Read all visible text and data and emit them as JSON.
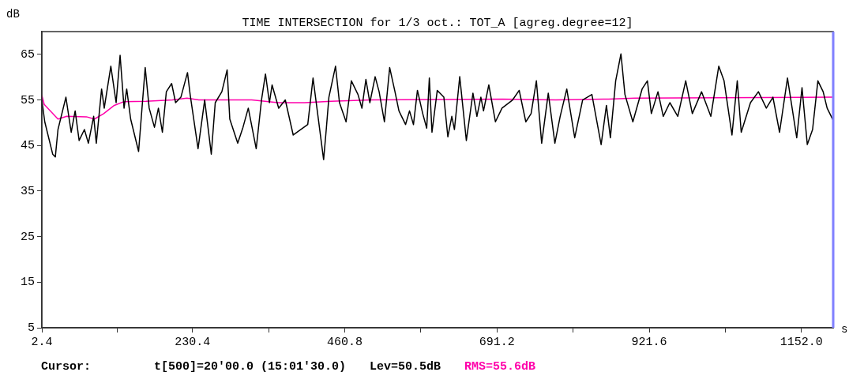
{
  "chart_data": {
    "type": "line",
    "title": "TIME INTERSECTION for 1/3 oct.: TOT_A [agreg.degree=12]",
    "ylabel": "dB",
    "xlabel": "s",
    "xlim": [
      2.4,
      1200
    ],
    "ylim": [
      5,
      70
    ],
    "xticks": [
      2.4,
      {
        "value": 116.4,
        "label": null
      },
      230.4,
      {
        "value": 345.6,
        "label": null
      },
      460.8,
      {
        "value": 576,
        "label": null
      },
      691.2,
      {
        "value": 806.4,
        "label": null
      },
      921.6,
      {
        "value": 1036.8,
        "label": null
      },
      {
        "value": 1152,
        "label": "1152.0"
      }
    ],
    "yticks": [
      5,
      15,
      25,
      35,
      45,
      55,
      65
    ],
    "grid": false,
    "marker": "none",
    "ref_lines": [
      {
        "axis": "x",
        "value": 1200,
        "color": "#8080ff"
      }
    ],
    "annotations": [
      "Cursor:",
      "t[500]=20'00.0 (15:01'30.0)",
      "Lev=50.5dB",
      "RMS=55.6dB"
    ],
    "series": [
      {
        "color": "#000000",
        "x": [
          2.4,
          6.8,
          18.8,
          22.8,
          26.8,
          38.8,
          46.8,
          52.8,
          58.8,
          66.8,
          72.8,
          80.8,
          84.8,
          92.8,
          96.8,
          106.8,
          114.8,
          120.8,
          126.8,
          130.8,
          136.8,
          148.8,
          158.8,
          164.8,
          172.8,
          178.8,
          184.8,
          190.8,
          198.8,
          204.8,
          212.8,
          222.8,
          226.8,
          238.8,
          248.8,
          258.8,
          264.8,
          274.8,
          282.8,
          286.8,
          298.8,
          306.8,
          314.8,
          326.8,
          334.8,
          340.8,
          346.8,
          350.8,
          360.8,
          370.8,
          382.8,
          404.8,
          412.8,
          428.8,
          432.8,
          436.8,
          446.8,
          452.8,
          462.8,
          470.8,
          480.8,
          486.8,
          492.8,
          498.8,
          506.8,
          512.8,
          520.8,
          528.8,
          536.8,
          542.8,
          552.8,
          558.8,
          564.8,
          570.8,
          578.8,
          584.8,
          588.8,
          592.8,
          600.8,
          610.8,
          616.8,
          622.8,
          626.8,
          634.8,
          644.8,
          654.8,
          660.8,
          666.8,
          670.8,
          678.8,
          688.8,
          698.8,
          714.8,
          724.8,
          734.8,
          742.8,
          750.8,
          758.8,
          768.8,
          778.8,
          786.8,
          796.8,
          808.8,
          820.8,
          834.8,
          848.8,
          856.8,
          862.8,
          870.8,
          878.8,
          884.8,
          896.8,
          910.8,
          918.8,
          924.8,
          934.8,
          942.8,
          952.8,
          964.8,
          976.8,
          986.8,
          1000.8,
          1014.8,
          1026.8,
          1034.8,
          1046.8,
          1054.8,
          1060.8,
          1074.8,
          1086.8,
          1098.8,
          1108.8,
          1118.8,
          1130.8,
          1144.8,
          1152.8,
          1160.8,
          1168.8,
          1176.8,
          1184.8,
          1190.8,
          1200
        ],
        "values": [
          55,
          50.2,
          43.1,
          42.5,
          48.5,
          55.6,
          47.9,
          52.6,
          46.1,
          48.5,
          45.5,
          51.4,
          45.5,
          57.4,
          53.2,
          62.4,
          54.4,
          64.8,
          53.2,
          57.4,
          50.8,
          43.7,
          62.1,
          53.2,
          49,
          53.2,
          47.9,
          56.8,
          58.6,
          54.4,
          55.6,
          61,
          56.2,
          44.3,
          55,
          43.1,
          54.4,
          56.8,
          61.6,
          50.8,
          45.5,
          49,
          53.2,
          44.3,
          55,
          60.7,
          54.4,
          58.3,
          53.2,
          55,
          47.3,
          49.6,
          59.8,
          41.9,
          48.5,
          55.6,
          62.4,
          54.4,
          50.2,
          59.2,
          56.2,
          53.2,
          59.5,
          54.4,
          60.1,
          56.8,
          50.2,
          62.1,
          56.8,
          52.6,
          49.6,
          52.6,
          49.6,
          57.1,
          52,
          48.8,
          59.8,
          47.9,
          57.1,
          55.6,
          46.9,
          51.4,
          48.5,
          60.1,
          46.1,
          56.5,
          51.4,
          55.6,
          52.6,
          58.3,
          50.2,
          53.2,
          55,
          57.1,
          50.2,
          52,
          59.2,
          45.5,
          56.5,
          45.5,
          51.4,
          57.4,
          46.7,
          55,
          56.2,
          45.2,
          53.8,
          46.7,
          59.2,
          65.1,
          56.2,
          50.2,
          57.4,
          59.2,
          52,
          56.8,
          51.4,
          54.4,
          51.4,
          59.2,
          52,
          56.8,
          51.4,
          62.4,
          59.2,
          47.3,
          59.2,
          47.9,
          54.4,
          56.8,
          53.2,
          55.6,
          47.9,
          59.8,
          46.7,
          57.7,
          45.2,
          48.5,
          59.2,
          56.8,
          53.2,
          50.5
        ]
      },
      {
        "color": "#ff00aa",
        "x": [
          2.4,
          6,
          26.8,
          40,
          70,
          82,
          96,
          112,
          126,
          160,
          200,
          222,
          240,
          320,
          360,
          400,
          440,
          500,
          700,
          780,
          860,
          900,
          1200
        ],
        "values": [
          56,
          54,
          50.8,
          51.4,
          51.3,
          50.8,
          52,
          53.8,
          54.6,
          54.7,
          55,
          55.4,
          55,
          55,
          54.4,
          54.4,
          54.7,
          55,
          55.2,
          55,
          55.2,
          55.4,
          55.6
        ]
      }
    ]
  }
}
